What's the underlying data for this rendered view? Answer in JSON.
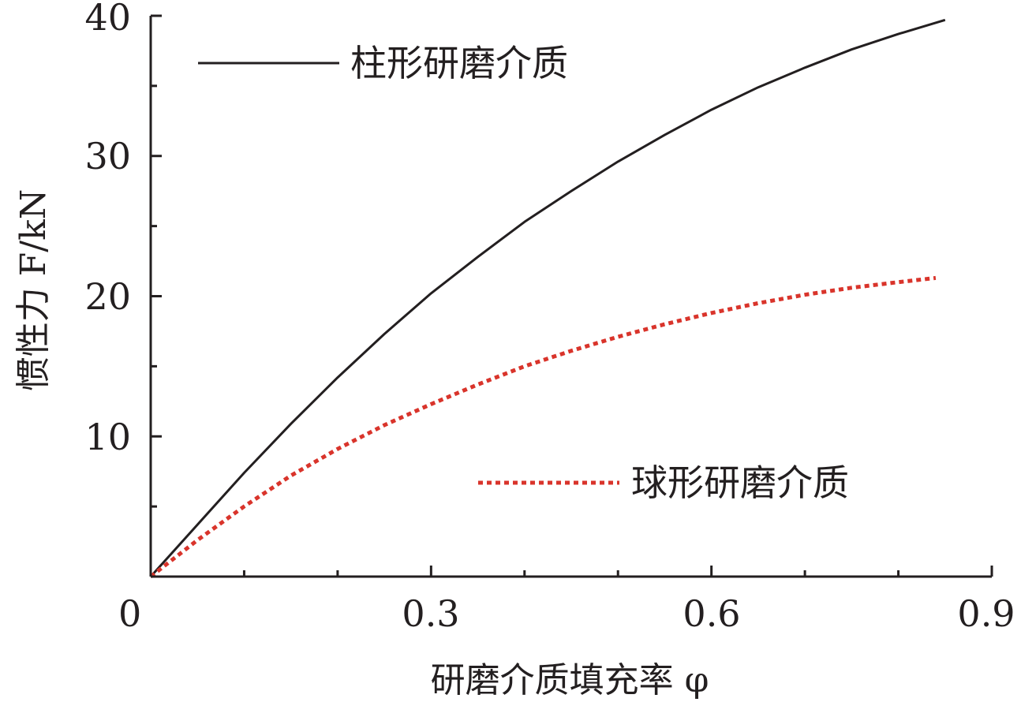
{
  "chart_data": {
    "type": "line",
    "title": "",
    "xlabel": "研磨介质填充率 φ",
    "ylabel": "惯性力 F/kN",
    "xlim": [
      0,
      0.9
    ],
    "ylim": [
      0,
      40
    ],
    "x_ticks": [
      0,
      0.3,
      0.6,
      0.9
    ],
    "x_tick_labels": [
      "0",
      "0.3",
      "0.6",
      "0.9"
    ],
    "y_ticks": [
      10,
      20,
      30,
      40
    ],
    "y_tick_labels": [
      "10",
      "20",
      "30",
      "40"
    ],
    "grid": false,
    "legend": "inside",
    "series": [
      {
        "name": "柱形研磨介质",
        "color": "#231f20",
        "style": "solid",
        "x": [
          0.0,
          0.05,
          0.1,
          0.15,
          0.2,
          0.25,
          0.3,
          0.35,
          0.4,
          0.45,
          0.5,
          0.55,
          0.6,
          0.65,
          0.7,
          0.75,
          0.8,
          0.85
        ],
        "values": [
          0.0,
          3.7,
          7.4,
          10.9,
          14.2,
          17.3,
          20.2,
          22.8,
          25.3,
          27.5,
          29.6,
          31.5,
          33.3,
          34.9,
          36.3,
          37.6,
          38.7,
          39.7
        ]
      },
      {
        "name": "球形研磨介质",
        "color": "#d9342b",
        "style": "dotted",
        "x": [
          0.0,
          0.05,
          0.1,
          0.15,
          0.2,
          0.25,
          0.3,
          0.35,
          0.4,
          0.45,
          0.5,
          0.55,
          0.6,
          0.65,
          0.7,
          0.75,
          0.8,
          0.84
        ],
        "values": [
          0.0,
          2.6,
          5.0,
          7.2,
          9.1,
          10.8,
          12.3,
          13.7,
          15.0,
          16.1,
          17.1,
          18.0,
          18.8,
          19.5,
          20.1,
          20.6,
          21.0,
          21.3
        ]
      }
    ]
  }
}
